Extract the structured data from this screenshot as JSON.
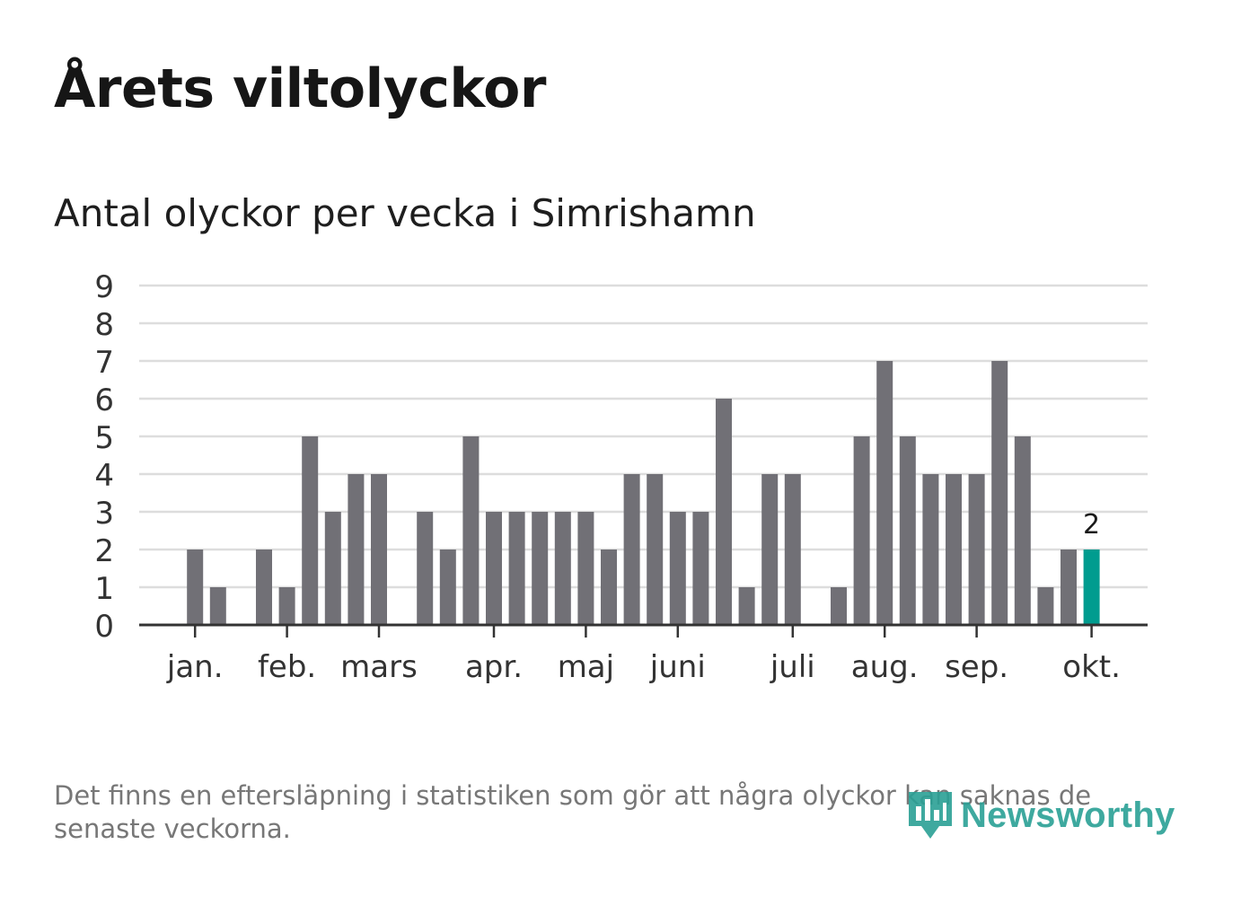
{
  "header": {
    "title": "Årets viltolyckor",
    "subtitle": "Antal olyckor per vecka i Simrishamn"
  },
  "footer": {
    "note": "Det finns en eftersläpning i statistiken som gör att några olyckor kan saknas de senaste veckorna.",
    "brand": "Newsworthy"
  },
  "colors": {
    "bar": "#717076",
    "highlight": "#009c8f",
    "grid": "#dddddd",
    "axis": "#333333",
    "brand": "#2aa095"
  },
  "chart_data": {
    "type": "bar",
    "title": "Antal olyckor per vecka i Simrishamn",
    "xlabel": "",
    "ylabel": "",
    "ylim": [
      0,
      9
    ],
    "yticks": [
      "0",
      "1",
      "2",
      "3",
      "4",
      "5",
      "6",
      "7",
      "8",
      "9"
    ],
    "grid": true,
    "weeks": [
      1,
      2,
      3,
      4,
      5,
      6,
      7,
      8,
      9,
      10,
      11,
      12,
      13,
      14,
      15,
      16,
      17,
      18,
      19,
      20,
      21,
      22,
      23,
      24,
      25,
      26,
      27,
      28,
      29,
      30,
      31,
      32,
      33,
      34,
      35,
      36,
      37,
      38,
      39,
      40,
      41,
      42,
      43
    ],
    "values": [
      0,
      0,
      2,
      1,
      0,
      2,
      1,
      5,
      3,
      4,
      4,
      0,
      3,
      2,
      5,
      3,
      3,
      3,
      3,
      3,
      2,
      4,
      4,
      3,
      3,
      6,
      1,
      4,
      4,
      0,
      1,
      5,
      7,
      5,
      4,
      4,
      4,
      7,
      5,
      1,
      2,
      2,
      0
    ],
    "highlight_index": 41,
    "highlight_label": "2",
    "month_labels": [
      {
        "label": "jan.",
        "week": 3
      },
      {
        "label": "feb.",
        "week": 7
      },
      {
        "label": "mars",
        "week": 11
      },
      {
        "label": "apr.",
        "week": 16
      },
      {
        "label": "maj",
        "week": 20
      },
      {
        "label": "juni",
        "week": 24
      },
      {
        "label": "juli",
        "week": 29
      },
      {
        "label": "aug.",
        "week": 33
      },
      {
        "label": "sep.",
        "week": 37
      },
      {
        "label": "okt.",
        "week": 42
      }
    ]
  }
}
